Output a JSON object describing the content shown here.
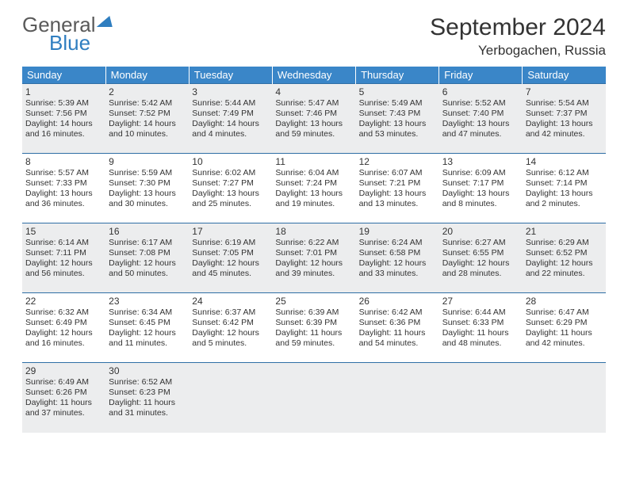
{
  "brand": {
    "part1": "General",
    "part2": "Blue"
  },
  "title": "September 2024",
  "location": "Yerbogachen, Russia",
  "colors": {
    "header_bg": "#3a86c8",
    "border": "#2f6fa5",
    "shade": "#ecedee",
    "text": "#333333",
    "brand_blue": "#2f7ec0",
    "brand_gray": "#5a5a5a"
  },
  "days_of_week": [
    "Sunday",
    "Monday",
    "Tuesday",
    "Wednesday",
    "Thursday",
    "Friday",
    "Saturday"
  ],
  "weeks": [
    {
      "shaded": true,
      "cells": [
        {
          "n": "1",
          "sr": "Sunrise: 5:39 AM",
          "ss": "Sunset: 7:56 PM",
          "dl": "Daylight: 14 hours and 16 minutes."
        },
        {
          "n": "2",
          "sr": "Sunrise: 5:42 AM",
          "ss": "Sunset: 7:52 PM",
          "dl": "Daylight: 14 hours and 10 minutes."
        },
        {
          "n": "3",
          "sr": "Sunrise: 5:44 AM",
          "ss": "Sunset: 7:49 PM",
          "dl": "Daylight: 14 hours and 4 minutes."
        },
        {
          "n": "4",
          "sr": "Sunrise: 5:47 AM",
          "ss": "Sunset: 7:46 PM",
          "dl": "Daylight: 13 hours and 59 minutes."
        },
        {
          "n": "5",
          "sr": "Sunrise: 5:49 AM",
          "ss": "Sunset: 7:43 PM",
          "dl": "Daylight: 13 hours and 53 minutes."
        },
        {
          "n": "6",
          "sr": "Sunrise: 5:52 AM",
          "ss": "Sunset: 7:40 PM",
          "dl": "Daylight: 13 hours and 47 minutes."
        },
        {
          "n": "7",
          "sr": "Sunrise: 5:54 AM",
          "ss": "Sunset: 7:37 PM",
          "dl": "Daylight: 13 hours and 42 minutes."
        }
      ]
    },
    {
      "shaded": false,
      "cells": [
        {
          "n": "8",
          "sr": "Sunrise: 5:57 AM",
          "ss": "Sunset: 7:33 PM",
          "dl": "Daylight: 13 hours and 36 minutes."
        },
        {
          "n": "9",
          "sr": "Sunrise: 5:59 AM",
          "ss": "Sunset: 7:30 PM",
          "dl": "Daylight: 13 hours and 30 minutes."
        },
        {
          "n": "10",
          "sr": "Sunrise: 6:02 AM",
          "ss": "Sunset: 7:27 PM",
          "dl": "Daylight: 13 hours and 25 minutes."
        },
        {
          "n": "11",
          "sr": "Sunrise: 6:04 AM",
          "ss": "Sunset: 7:24 PM",
          "dl": "Daylight: 13 hours and 19 minutes."
        },
        {
          "n": "12",
          "sr": "Sunrise: 6:07 AM",
          "ss": "Sunset: 7:21 PM",
          "dl": "Daylight: 13 hours and 13 minutes."
        },
        {
          "n": "13",
          "sr": "Sunrise: 6:09 AM",
          "ss": "Sunset: 7:17 PM",
          "dl": "Daylight: 13 hours and 8 minutes."
        },
        {
          "n": "14",
          "sr": "Sunrise: 6:12 AM",
          "ss": "Sunset: 7:14 PM",
          "dl": "Daylight: 13 hours and 2 minutes."
        }
      ]
    },
    {
      "shaded": true,
      "cells": [
        {
          "n": "15",
          "sr": "Sunrise: 6:14 AM",
          "ss": "Sunset: 7:11 PM",
          "dl": "Daylight: 12 hours and 56 minutes."
        },
        {
          "n": "16",
          "sr": "Sunrise: 6:17 AM",
          "ss": "Sunset: 7:08 PM",
          "dl": "Daylight: 12 hours and 50 minutes."
        },
        {
          "n": "17",
          "sr": "Sunrise: 6:19 AM",
          "ss": "Sunset: 7:05 PM",
          "dl": "Daylight: 12 hours and 45 minutes."
        },
        {
          "n": "18",
          "sr": "Sunrise: 6:22 AM",
          "ss": "Sunset: 7:01 PM",
          "dl": "Daylight: 12 hours and 39 minutes."
        },
        {
          "n": "19",
          "sr": "Sunrise: 6:24 AM",
          "ss": "Sunset: 6:58 PM",
          "dl": "Daylight: 12 hours and 33 minutes."
        },
        {
          "n": "20",
          "sr": "Sunrise: 6:27 AM",
          "ss": "Sunset: 6:55 PM",
          "dl": "Daylight: 12 hours and 28 minutes."
        },
        {
          "n": "21",
          "sr": "Sunrise: 6:29 AM",
          "ss": "Sunset: 6:52 PM",
          "dl": "Daylight: 12 hours and 22 minutes."
        }
      ]
    },
    {
      "shaded": false,
      "cells": [
        {
          "n": "22",
          "sr": "Sunrise: 6:32 AM",
          "ss": "Sunset: 6:49 PM",
          "dl": "Daylight: 12 hours and 16 minutes."
        },
        {
          "n": "23",
          "sr": "Sunrise: 6:34 AM",
          "ss": "Sunset: 6:45 PM",
          "dl": "Daylight: 12 hours and 11 minutes."
        },
        {
          "n": "24",
          "sr": "Sunrise: 6:37 AM",
          "ss": "Sunset: 6:42 PM",
          "dl": "Daylight: 12 hours and 5 minutes."
        },
        {
          "n": "25",
          "sr": "Sunrise: 6:39 AM",
          "ss": "Sunset: 6:39 PM",
          "dl": "Daylight: 11 hours and 59 minutes."
        },
        {
          "n": "26",
          "sr": "Sunrise: 6:42 AM",
          "ss": "Sunset: 6:36 PM",
          "dl": "Daylight: 11 hours and 54 minutes."
        },
        {
          "n": "27",
          "sr": "Sunrise: 6:44 AM",
          "ss": "Sunset: 6:33 PM",
          "dl": "Daylight: 11 hours and 48 minutes."
        },
        {
          "n": "28",
          "sr": "Sunrise: 6:47 AM",
          "ss": "Sunset: 6:29 PM",
          "dl": "Daylight: 11 hours and 42 minutes."
        }
      ]
    },
    {
      "shaded": true,
      "cells": [
        {
          "n": "29",
          "sr": "Sunrise: 6:49 AM",
          "ss": "Sunset: 6:26 PM",
          "dl": "Daylight: 11 hours and 37 minutes."
        },
        {
          "n": "30",
          "sr": "Sunrise: 6:52 AM",
          "ss": "Sunset: 6:23 PM",
          "dl": "Daylight: 11 hours and 31 minutes."
        },
        null,
        null,
        null,
        null,
        null
      ]
    }
  ]
}
